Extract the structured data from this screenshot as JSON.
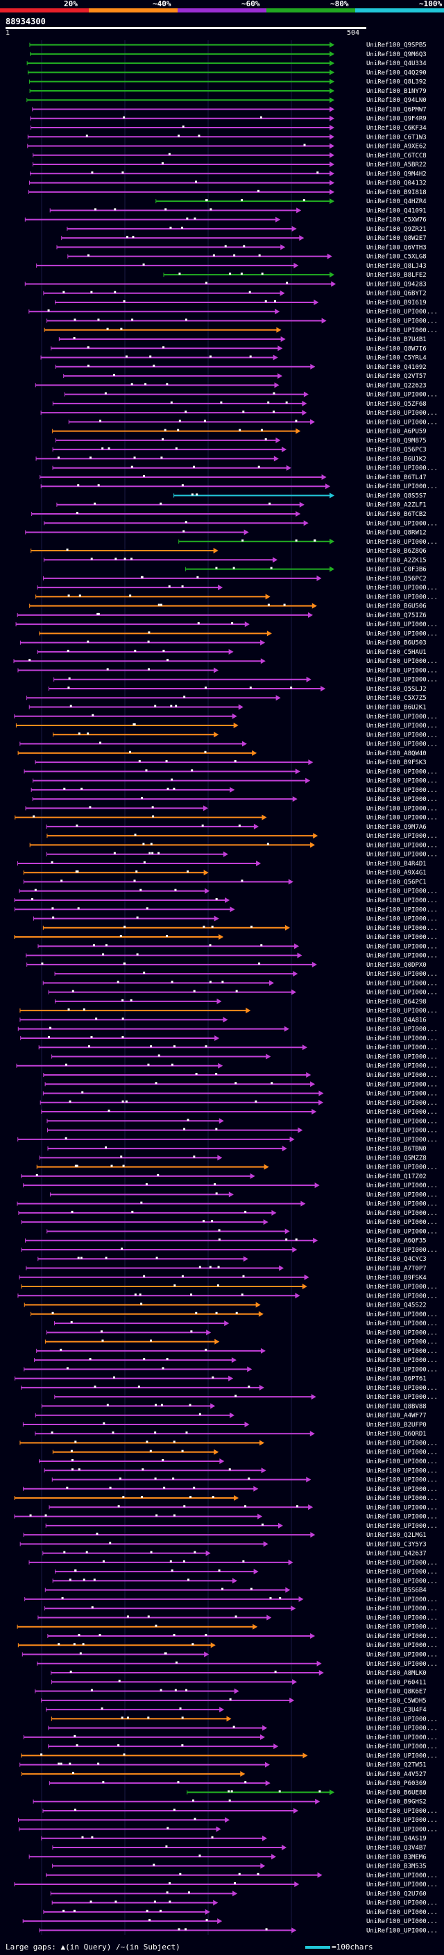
{
  "legend": {
    "segments": [
      {
        "label": "20%",
        "color": "#e8202a"
      },
      {
        "label": "~40%",
        "color": "#ff8c1a"
      },
      {
        "label": "~60%",
        "color": "#9b2fd4"
      },
      {
        "label": "~80%",
        "color": "#22a822"
      },
      {
        "label": "~100%",
        "color": "#22c7d9"
      }
    ]
  },
  "query": {
    "id": "88934300",
    "start": "1",
    "end": "504"
  },
  "hits": [
    {
      "name": "UniRef100_Q9SPB5",
      "pid": 90
    },
    {
      "name": "UniRef100_Q9M6Q3",
      "pid": 90
    },
    {
      "name": "UniRef100_Q4U334",
      "pid": 90
    },
    {
      "name": "UniRef100_Q4Q290",
      "pid": 90
    },
    {
      "name": "UniRef100_Q8L392",
      "pid": 90
    },
    {
      "name": "UniRef100_B1NY79",
      "pid": 90
    },
    {
      "name": "UniRef100_Q94LN0",
      "pid": 90
    },
    {
      "name": "UniRef100_Q6PMW7",
      "pid": 60
    },
    {
      "name": "UniRef100_Q9F4R9",
      "pid": 60
    },
    {
      "name": "UniRef100_C6KF34",
      "pid": 60
    },
    {
      "name": "UniRef100_C6T1W3",
      "pid": 60
    },
    {
      "name": "UniRef100_A9XE62",
      "pid": 60
    },
    {
      "name": "UniRef100_C6TCC8",
      "pid": 60
    },
    {
      "name": "UniRef100_A5BR22",
      "pid": 60
    },
    {
      "name": "UniRef100_Q9M4H2",
      "pid": 60
    },
    {
      "name": "UniRef100_Q04132",
      "pid": 60
    },
    {
      "name": "UniRef100_B9I818",
      "pid": 60
    },
    {
      "name": "UniRef100_Q4HZR4",
      "pid": 80
    },
    {
      "name": "UniRef100_Q41091",
      "pid": 60
    },
    {
      "name": "UniRef100_C5XW76",
      "pid": 60
    },
    {
      "name": "UniRef100_Q9ZR21",
      "pid": 60
    },
    {
      "name": "UniRef100_Q8W2E7",
      "pid": 60
    },
    {
      "name": "UniRef100_Q6VTH3",
      "pid": 60
    },
    {
      "name": "UniRef100_C5XLG8",
      "pid": 60
    },
    {
      "name": "UniRef100_Q8LJ43",
      "pid": 60
    },
    {
      "name": "UniRef100_B8LFE2",
      "pid": 80
    },
    {
      "name": "UniRef100_Q94283",
      "pid": 60
    },
    {
      "name": "UniRef100_Q6BYT2",
      "pid": 60
    },
    {
      "name": "UniRef100_B9I619",
      "pid": 60
    },
    {
      "name": "UniRef100_UPI000...",
      "pid": 60
    },
    {
      "name": "UniRef100_UPI000...",
      "pid": 60
    },
    {
      "name": "UniRef100_UPI000...",
      "pid": 40
    },
    {
      "name": "UniRef100_B7U4B1",
      "pid": 60
    },
    {
      "name": "UniRef100_Q8W7I6",
      "pid": 60
    },
    {
      "name": "UniRef100_C5YRL4",
      "pid": 60
    },
    {
      "name": "UniRef100_Q41092",
      "pid": 60
    },
    {
      "name": "UniRef100_Q2VT57",
      "pid": 60
    },
    {
      "name": "UniRef100_Q22623",
      "pid": 60
    },
    {
      "name": "UniRef100_UPI000...",
      "pid": 60
    },
    {
      "name": "UniRef100_Q5ZF68",
      "pid": 60
    },
    {
      "name": "UniRef100_UPI000...",
      "pid": 60
    },
    {
      "name": "UniRef100_UPI000...",
      "pid": 60
    },
    {
      "name": "UniRef100_A6PU59",
      "pid": 40
    },
    {
      "name": "UniRef100_Q9M875",
      "pid": 60
    },
    {
      "name": "UniRef100_Q56PC3",
      "pid": 60
    },
    {
      "name": "UniRef100_B6U1K2",
      "pid": 60
    },
    {
      "name": "UniRef100_UPI000...",
      "pid": 60
    },
    {
      "name": "UniRef100_B6TL47",
      "pid": 60
    },
    {
      "name": "UniRef100_UPI000...",
      "pid": 60
    },
    {
      "name": "UniRef100_Q8S5S7",
      "pid": 100
    },
    {
      "name": "UniRef100_A2ZLF1",
      "pid": 60
    },
    {
      "name": "UniRef100_B6TCB2",
      "pid": 60
    },
    {
      "name": "UniRef100_UPI000...",
      "pid": 60
    },
    {
      "name": "UniRef100_Q8RW12",
      "pid": 60
    },
    {
      "name": "UniRef100_UPI000...",
      "pid": 80
    },
    {
      "name": "UniRef100_B6Z8Q6",
      "pid": 40
    },
    {
      "name": "UniRef100_A2ZK15",
      "pid": 60
    },
    {
      "name": "UniRef100_C0F3B6",
      "pid": 80
    },
    {
      "name": "UniRef100_Q56PC2",
      "pid": 60
    },
    {
      "name": "UniRef100_UPI000...",
      "pid": 60
    },
    {
      "name": "UniRef100_UPI000...",
      "pid": 40
    },
    {
      "name": "UniRef100_B6U506",
      "pid": 40
    },
    {
      "name": "UniRef100_Q75IZ6",
      "pid": 60
    },
    {
      "name": "UniRef100_UPI000...",
      "pid": 60
    },
    {
      "name": "UniRef100_UPI000...",
      "pid": 40
    },
    {
      "name": "UniRef100_B6U503",
      "pid": 60
    },
    {
      "name": "UniRef100_C5HAU1",
      "pid": 60
    },
    {
      "name": "UniRef100_UPI000...",
      "pid": 60
    },
    {
      "name": "UniRef100_UPI000...",
      "pid": 60
    },
    {
      "name": "UniRef100_UPI000...",
      "pid": 60
    },
    {
      "name": "UniRef100_Q5SLJ2",
      "pid": 60
    },
    {
      "name": "UniRef100_C5X7Z5",
      "pid": 60
    },
    {
      "name": "UniRef100_B6U2K1",
      "pid": 60
    },
    {
      "name": "UniRef100_UPI000...",
      "pid": 60
    },
    {
      "name": "UniRef100_UPI000...",
      "pid": 40
    },
    {
      "name": "UniRef100_UPI000...",
      "pid": 40
    },
    {
      "name": "UniRef100_UPI000...",
      "pid": 60
    },
    {
      "name": "UniRef100_A8QW40",
      "pid": 40
    },
    {
      "name": "UniRef100_B9FSK3",
      "pid": 60
    },
    {
      "name": "UniRef100_UPI000...",
      "pid": 60
    },
    {
      "name": "UniRef100_UPI000...",
      "pid": 60
    },
    {
      "name": "UniRef100_UPI000...",
      "pid": 60
    },
    {
      "name": "UniRef100_UPI000...",
      "pid": 60
    },
    {
      "name": "UniRef100_UPI000...",
      "pid": 60
    },
    {
      "name": "UniRef100_UPI000...",
      "pid": 40
    },
    {
      "name": "UniRef100_Q9M7A6",
      "pid": 60
    },
    {
      "name": "UniRef100_UPI000...",
      "pid": 40
    },
    {
      "name": "UniRef100_UPI000...",
      "pid": 40
    },
    {
      "name": "UniRef100_UPI000...",
      "pid": 60
    },
    {
      "name": "UniRef100_B4R4D1",
      "pid": 60
    },
    {
      "name": "UniRef100_A9X4G1",
      "pid": 40
    },
    {
      "name": "UniRef100_Q56PC1",
      "pid": 60
    },
    {
      "name": "UniRef100_UPI000...",
      "pid": 60
    },
    {
      "name": "UniRef100_UPI000...",
      "pid": 60
    },
    {
      "name": "UniRef100_UPI000...",
      "pid": 60
    },
    {
      "name": "UniRef100_UPI000...",
      "pid": 60
    },
    {
      "name": "UniRef100_UPI000...",
      "pid": 40
    },
    {
      "name": "UniRef100_UPI000...",
      "pid": 40
    },
    {
      "name": "UniRef100_UPI000...",
      "pid": 60
    },
    {
      "name": "UniRef100_UPI000...",
      "pid": 60
    },
    {
      "name": "UniRef100_Q0DPX0",
      "pid": 60
    },
    {
      "name": "UniRef100_UPI000...",
      "pid": 60
    },
    {
      "name": "UniRef100_UPI000...",
      "pid": 60
    },
    {
      "name": "UniRef100_UPI000...",
      "pid": 60
    },
    {
      "name": "UniRef100_Q64298",
      "pid": 60
    },
    {
      "name": "UniRef100_UPI000...",
      "pid": 40
    },
    {
      "name": "UniRef100_Q4A816",
      "pid": 60
    },
    {
      "name": "UniRef100_UPI000...",
      "pid": 60
    },
    {
      "name": "UniRef100_UPI000...",
      "pid": 60
    },
    {
      "name": "UniRef100_UPI000...",
      "pid": 60
    },
    {
      "name": "UniRef100_UPI000...",
      "pid": 60
    },
    {
      "name": "UniRef100_UPI000...",
      "pid": 60
    },
    {
      "name": "UniRef100_UPI000...",
      "pid": 60
    },
    {
      "name": "UniRef100_UPI000...",
      "pid": 60
    },
    {
      "name": "UniRef100_UPI000...",
      "pid": 60
    },
    {
      "name": "UniRef100_UPI000...",
      "pid": 60
    },
    {
      "name": "UniRef100_UPI000...",
      "pid": 60
    },
    {
      "name": "UniRef100_UPI000...",
      "pid": 60
    },
    {
      "name": "UniRef100_UPI000...",
      "pid": 60
    },
    {
      "name": "UniRef100_UPI000...",
      "pid": 60
    },
    {
      "name": "UniRef100_B6TBN0",
      "pid": 60
    },
    {
      "name": "UniRef100_Q5MZZ8",
      "pid": 60
    },
    {
      "name": "UniRef100_UPI000...",
      "pid": 40
    },
    {
      "name": "UniRef100_Q17Z02",
      "pid": 60
    },
    {
      "name": "UniRef100_UPI000...",
      "pid": 60
    },
    {
      "name": "UniRef100_UPI000...",
      "pid": 60
    },
    {
      "name": "UniRef100_UPI000...",
      "pid": 60
    },
    {
      "name": "UniRef100_UPI000...",
      "pid": 60
    },
    {
      "name": "UniRef100_UPI000...",
      "pid": 60
    },
    {
      "name": "UniRef100_UPI000...",
      "pid": 60
    },
    {
      "name": "UniRef100_A6QF35",
      "pid": 60
    },
    {
      "name": "UniRef100_UPI000...",
      "pid": 60
    },
    {
      "name": "UniRef100_Q4CYC3",
      "pid": 60
    },
    {
      "name": "UniRef100_A7T0P7",
      "pid": 60
    },
    {
      "name": "UniRef100_B9FSK4",
      "pid": 60
    },
    {
      "name": "UniRef100_UPI000...",
      "pid": 40
    },
    {
      "name": "UniRef100_UPI000...",
      "pid": 60
    },
    {
      "name": "UniRef100_Q45S22",
      "pid": 40
    },
    {
      "name": "UniRef100_UPI000...",
      "pid": 40
    },
    {
      "name": "UniRef100_UPI000...",
      "pid": 60
    },
    {
      "name": "UniRef100_UPI000...",
      "pid": 60
    },
    {
      "name": "UniRef100_UPI000...",
      "pid": 40
    },
    {
      "name": "UniRef100_UPI000...",
      "pid": 60
    },
    {
      "name": "UniRef100_UPI000...",
      "pid": 60
    },
    {
      "name": "UniRef100_UPI000...",
      "pid": 60
    },
    {
      "name": "UniRef100_Q6PT61",
      "pid": 60
    },
    {
      "name": "UniRef100_UPI000...",
      "pid": 60
    },
    {
      "name": "UniRef100_UPI000...",
      "pid": 60
    },
    {
      "name": "UniRef100_Q8BV88",
      "pid": 60
    },
    {
      "name": "UniRef100_A4WF77",
      "pid": 60
    },
    {
      "name": "UniRef100_B2UFP0",
      "pid": 60
    },
    {
      "name": "UniRef100_Q6QRD1",
      "pid": 60
    },
    {
      "name": "UniRef100_UPI000...",
      "pid": 40
    },
    {
      "name": "UniRef100_UPI000...",
      "pid": 40
    },
    {
      "name": "UniRef100_UPI000...",
      "pid": 60
    },
    {
      "name": "UniRef100_UPI000...",
      "pid": 60
    },
    {
      "name": "UniRef100_UPI000...",
      "pid": 60
    },
    {
      "name": "UniRef100_UPI000...",
      "pid": 60
    },
    {
      "name": "UniRef100_UPI000...",
      "pid": 40
    },
    {
      "name": "UniRef100_UPI000...",
      "pid": 60
    },
    {
      "name": "UniRef100_UPI000...",
      "pid": 60
    },
    {
      "name": "UniRef100_UPI000...",
      "pid": 60
    },
    {
      "name": "UniRef100_Q2LMG1",
      "pid": 60
    },
    {
      "name": "UniRef100_C3Y5Y3",
      "pid": 60
    },
    {
      "name": "UniRef100_Q42637",
      "pid": 60
    },
    {
      "name": "UniRef100_UPI000...",
      "pid": 60
    },
    {
      "name": "UniRef100_UPI000...",
      "pid": 60
    },
    {
      "name": "UniRef100_UPI000...",
      "pid": 60
    },
    {
      "name": "UniRef100_B5S6B4",
      "pid": 60
    },
    {
      "name": "UniRef100_UPI000...",
      "pid": 60
    },
    {
      "name": "UniRef100_UPI000...",
      "pid": 60
    },
    {
      "name": "UniRef100_UPI000...",
      "pid": 60
    },
    {
      "name": "UniRef100_UPI000...",
      "pid": 40
    },
    {
      "name": "UniRef100_UPI000...",
      "pid": 60
    },
    {
      "name": "UniRef100_UPI000...",
      "pid": 40
    },
    {
      "name": "UniRef100_UPI000...",
      "pid": 60
    },
    {
      "name": "UniRef100_UPI000...",
      "pid": 60
    },
    {
      "name": "UniRef100_A8MLK0",
      "pid": 60
    },
    {
      "name": "UniRef100_P60411",
      "pid": 60
    },
    {
      "name": "UniRef100_Q8K6E7",
      "pid": 60
    },
    {
      "name": "UniRef100_C5WDH5",
      "pid": 60
    },
    {
      "name": "UniRef100_C3U4F4",
      "pid": 60
    },
    {
      "name": "UniRef100_UPI000...",
      "pid": 40
    },
    {
      "name": "UniRef100_UPI000...",
      "pid": 60
    },
    {
      "name": "UniRef100_UPI000...",
      "pid": 60
    },
    {
      "name": "UniRef100_UPI000...",
      "pid": 60
    },
    {
      "name": "UniRef100_UPI000...",
      "pid": 40
    },
    {
      "name": "UniRef100_Q2TW51",
      "pid": 60
    },
    {
      "name": "UniRef100_A4V527",
      "pid": 40
    },
    {
      "name": "UniRef100_P60369",
      "pid": 60
    },
    {
      "name": "UniRef100_B6UE88",
      "pid": 80
    },
    {
      "name": "UniRef100_B9GHS2",
      "pid": 60
    },
    {
      "name": "UniRef100_UPI000...",
      "pid": 60
    },
    {
      "name": "UniRef100_UPI000...",
      "pid": 60
    },
    {
      "name": "UniRef100_UPI000...",
      "pid": 60
    },
    {
      "name": "UniRef100_Q4AS19",
      "pid": 60
    },
    {
      "name": "UniRef100_Q3V4B7",
      "pid": 60
    },
    {
      "name": "UniRef100_B3MEM6",
      "pid": 60
    },
    {
      "name": "UniRef100_B3M535",
      "pid": 60
    },
    {
      "name": "UniRef100_UPI000...",
      "pid": 60
    },
    {
      "name": "UniRef100_UPI000...",
      "pid": 60
    },
    {
      "name": "UniRef100_Q2U760",
      "pid": 60
    },
    {
      "name": "UniRef100_UPI000...",
      "pid": 60
    },
    {
      "name": "UniRef100_UPI000...",
      "pid": 60
    },
    {
      "name": "UniRef100_UPI000...",
      "pid": 60
    },
    {
      "name": "UniRef100_UPI000...",
      "pid": 60
    }
  ],
  "footer": {
    "large_gaps_label": "Large gaps:",
    "query_gap_label": "(in Query)",
    "subject_gap_label": "(in Subject)",
    "scale_label": "=100chars"
  }
}
